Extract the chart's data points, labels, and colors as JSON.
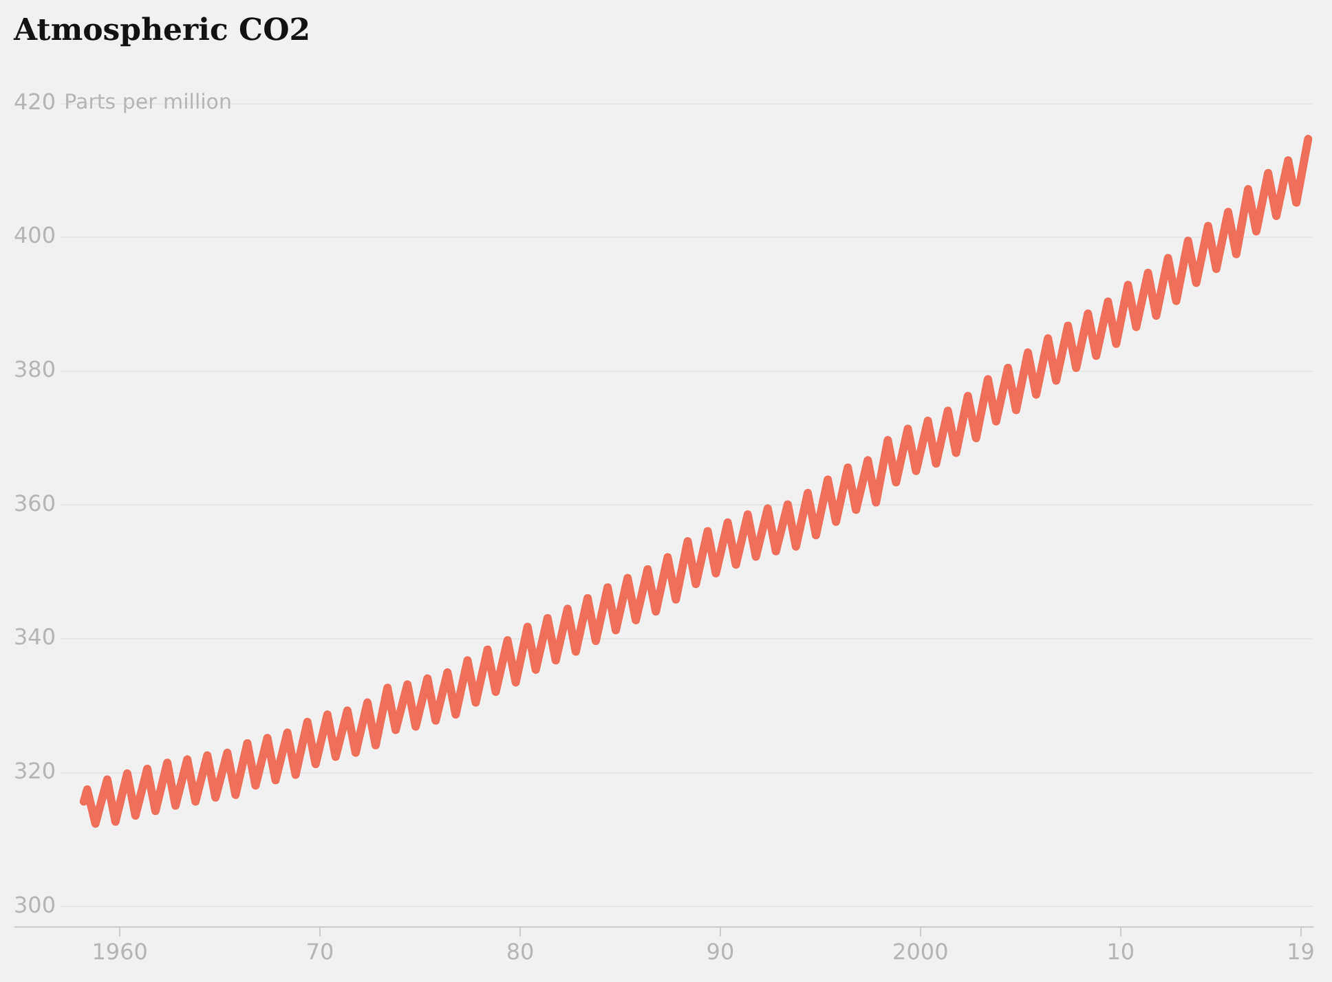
{
  "chart_data": {
    "type": "line",
    "title": "Atmospheric CO2",
    "ylabel": "Parts per million",
    "x": [
      1958.2,
      1958.37,
      1958.78,
      1959.37,
      1959.78,
      1960.37,
      1960.78,
      1961.37,
      1961.78,
      1962.37,
      1962.78,
      1963.37,
      1963.78,
      1964.37,
      1964.78,
      1965.37,
      1965.78,
      1966.37,
      1966.78,
      1967.37,
      1967.78,
      1968.37,
      1968.78,
      1969.37,
      1969.78,
      1970.37,
      1970.78,
      1971.37,
      1971.78,
      1972.37,
      1972.78,
      1973.37,
      1973.78,
      1974.37,
      1974.78,
      1975.37,
      1975.78,
      1976.37,
      1976.78,
      1977.37,
      1977.78,
      1978.37,
      1978.78,
      1979.37,
      1979.78,
      1980.37,
      1980.78,
      1981.37,
      1981.78,
      1982.37,
      1982.78,
      1983.37,
      1983.78,
      1984.37,
      1984.78,
      1985.37,
      1985.78,
      1986.37,
      1986.78,
      1987.37,
      1987.78,
      1988.37,
      1988.78,
      1989.37,
      1989.78,
      1990.37,
      1990.78,
      1991.37,
      1991.78,
      1992.37,
      1992.78,
      1993.37,
      1993.78,
      1994.37,
      1994.78,
      1995.37,
      1995.78,
      1996.37,
      1996.78,
      1997.37,
      1997.78,
      1998.37,
      1998.78,
      1999.37,
      1999.78,
      2000.37,
      2000.78,
      2001.37,
      2001.78,
      2002.37,
      2002.78,
      2003.37,
      2003.78,
      2004.37,
      2004.78,
      2005.37,
      2005.78,
      2006.37,
      2006.78,
      2007.37,
      2007.78,
      2008.37,
      2008.78,
      2009.37,
      2009.78,
      2010.37,
      2010.78,
      2011.37,
      2011.78,
      2012.37,
      2012.78,
      2013.37,
      2013.78,
      2014.37,
      2014.78,
      2015.37,
      2015.78,
      2016.37,
      2016.78,
      2017.37,
      2017.78,
      2018.37,
      2018.78,
      2019.37
    ],
    "series": [
      {
        "color": "#ef6f5b",
        "values": [
          315.7,
          317.5,
          312.4,
          319.0,
          312.7,
          319.9,
          313.6,
          320.6,
          314.3,
          321.5,
          315.1,
          322.0,
          315.7,
          322.6,
          316.3,
          323.0,
          316.7,
          324.4,
          318.1,
          325.2,
          318.9,
          326.0,
          319.7,
          327.6,
          321.3,
          328.7,
          322.4,
          329.3,
          323.0,
          330.5,
          324.1,
          332.7,
          326.4,
          333.2,
          326.9,
          334.1,
          327.8,
          335.0,
          328.7,
          336.8,
          330.5,
          338.4,
          332.1,
          339.8,
          333.5,
          341.8,
          335.4,
          343.1,
          336.8,
          344.5,
          338.1,
          346.1,
          339.7,
          347.7,
          341.3,
          349.1,
          342.8,
          350.4,
          344.1,
          352.2,
          345.9,
          354.6,
          348.2,
          356.1,
          349.8,
          357.4,
          351.1,
          358.6,
          352.3,
          359.5,
          353.1,
          360.1,
          353.8,
          361.8,
          355.5,
          363.8,
          357.5,
          365.6,
          359.3,
          366.7,
          360.4,
          369.7,
          363.4,
          371.4,
          365.1,
          372.6,
          366.2,
          374.1,
          367.8,
          376.3,
          370.0,
          378.8,
          372.5,
          380.5,
          374.2,
          382.8,
          376.5,
          384.9,
          378.6,
          386.8,
          380.5,
          388.6,
          382.3,
          390.4,
          384.1,
          392.9,
          386.6,
          394.7,
          388.3,
          396.9,
          390.5,
          399.5,
          393.2,
          401.7,
          395.3,
          403.8,
          397.5,
          407.2,
          400.9,
          409.6,
          403.2,
          411.5,
          405.2,
          414.7
        ]
      }
    ],
    "xlim": [
      1954.7,
      2019.6
    ],
    "ylim": [
      297,
      421
    ],
    "xticks": [
      {
        "value": 1960,
        "label": "1960"
      },
      {
        "value": 1970,
        "label": "70"
      },
      {
        "value": 1980,
        "label": "80"
      },
      {
        "value": 1990,
        "label": "90"
      },
      {
        "value": 2000,
        "label": "2000"
      },
      {
        "value": 2010,
        "label": "10"
      },
      {
        "value": 2019,
        "label": "19"
      }
    ],
    "yticks": [
      300,
      320,
      340,
      360,
      380,
      400,
      420
    ],
    "grid": "y",
    "legend": false,
    "marker": "none",
    "line_style": "solid"
  }
}
